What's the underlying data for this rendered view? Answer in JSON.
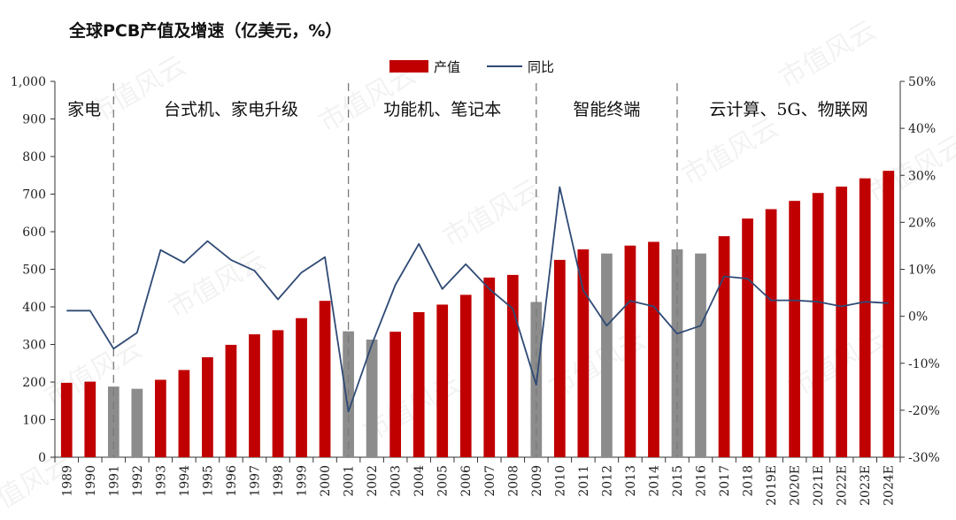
{
  "chart_data": {
    "type": "bar",
    "title": "全球PCB产值及增速（亿美元，%）",
    "categories": [
      "1989",
      "1990",
      "1991",
      "1992",
      "1993",
      "1994",
      "1995",
      "1996",
      "1997",
      "1998",
      "1999",
      "2000",
      "2001",
      "2002",
      "2003",
      "2004",
      "2005",
      "2006",
      "2007",
      "2008",
      "2009",
      "2010",
      "2011",
      "2012",
      "2013",
      "2014",
      "2015",
      "2016",
      "2017",
      "2018",
      "2019E",
      "2020E",
      "2021E",
      "2022E",
      "2023E",
      "2024E"
    ],
    "series": [
      {
        "name": "产值",
        "type": "bar",
        "axis": "left",
        "values": [
          198,
          201,
          188,
          182,
          206,
          232,
          266,
          299,
          327,
          338,
          370,
          416,
          335,
          313,
          334,
          386,
          406,
          432,
          478,
          485,
          413,
          525,
          553,
          542,
          563,
          573,
          553,
          542,
          588,
          635,
          660,
          682,
          703,
          720,
          742,
          762
        ],
        "bar_colors": [
          "#c00000",
          "#c00000",
          "#8c8c8c",
          "#8c8c8c",
          "#c00000",
          "#c00000",
          "#c00000",
          "#c00000",
          "#c00000",
          "#c00000",
          "#c00000",
          "#c00000",
          "#8c8c8c",
          "#8c8c8c",
          "#c00000",
          "#c00000",
          "#c00000",
          "#c00000",
          "#c00000",
          "#c00000",
          "#8c8c8c",
          "#c00000",
          "#c00000",
          "#8c8c8c",
          "#c00000",
          "#c00000",
          "#8c8c8c",
          "#8c8c8c",
          "#c00000",
          "#c00000",
          "#c00000",
          "#c00000",
          "#c00000",
          "#c00000",
          "#c00000",
          "#c00000"
        ]
      },
      {
        "name": "同比",
        "type": "line",
        "axis": "right",
        "color": "#2f4a75",
        "values": [
          1.2,
          1.2,
          -6.9,
          -3.5,
          14.1,
          11.4,
          16.0,
          12.0,
          9.7,
          3.6,
          9.3,
          12.6,
          -20.3,
          -6.0,
          6.7,
          15.4,
          5.8,
          11.1,
          5.8,
          1.6,
          -14.6,
          27.5,
          5.5,
          -2.0,
          3.3,
          2.1,
          -3.7,
          -2.0,
          8.5,
          8.0,
          3.4,
          3.4,
          3.1,
          2.1,
          3.1,
          2.8
        ]
      }
    ],
    "y_left": {
      "min": 0,
      "max": 1000,
      "ticks": [
        "0",
        "100",
        "200",
        "300",
        "400",
        "500",
        "600",
        "700",
        "800",
        "900",
        "1,000"
      ]
    },
    "y_right": {
      "min": -30,
      "max": 50,
      "ticks": [
        "-30%",
        "-20%",
        "-10%",
        "0%",
        "10%",
        "20%",
        "30%",
        "40%",
        "50%"
      ]
    },
    "legend": {
      "position": "top-center"
    },
    "grid": false,
    "eras": [
      {
        "label": "家电",
        "from": "1989",
        "to": "1990"
      },
      {
        "label": "台式机、家电升级",
        "from": "1991",
        "to": "2000"
      },
      {
        "label": "功能机、笔记本",
        "from": "2001",
        "to": "2008"
      },
      {
        "label": "智能终端",
        "from": "2009",
        "to": "2014"
      },
      {
        "label": "云计算、5G、物联网",
        "from": "2015",
        "to": "2024E"
      }
    ],
    "era_dividers": [
      "1991",
      "2001",
      "2009",
      "2015"
    ],
    "watermark": "市值风云"
  }
}
